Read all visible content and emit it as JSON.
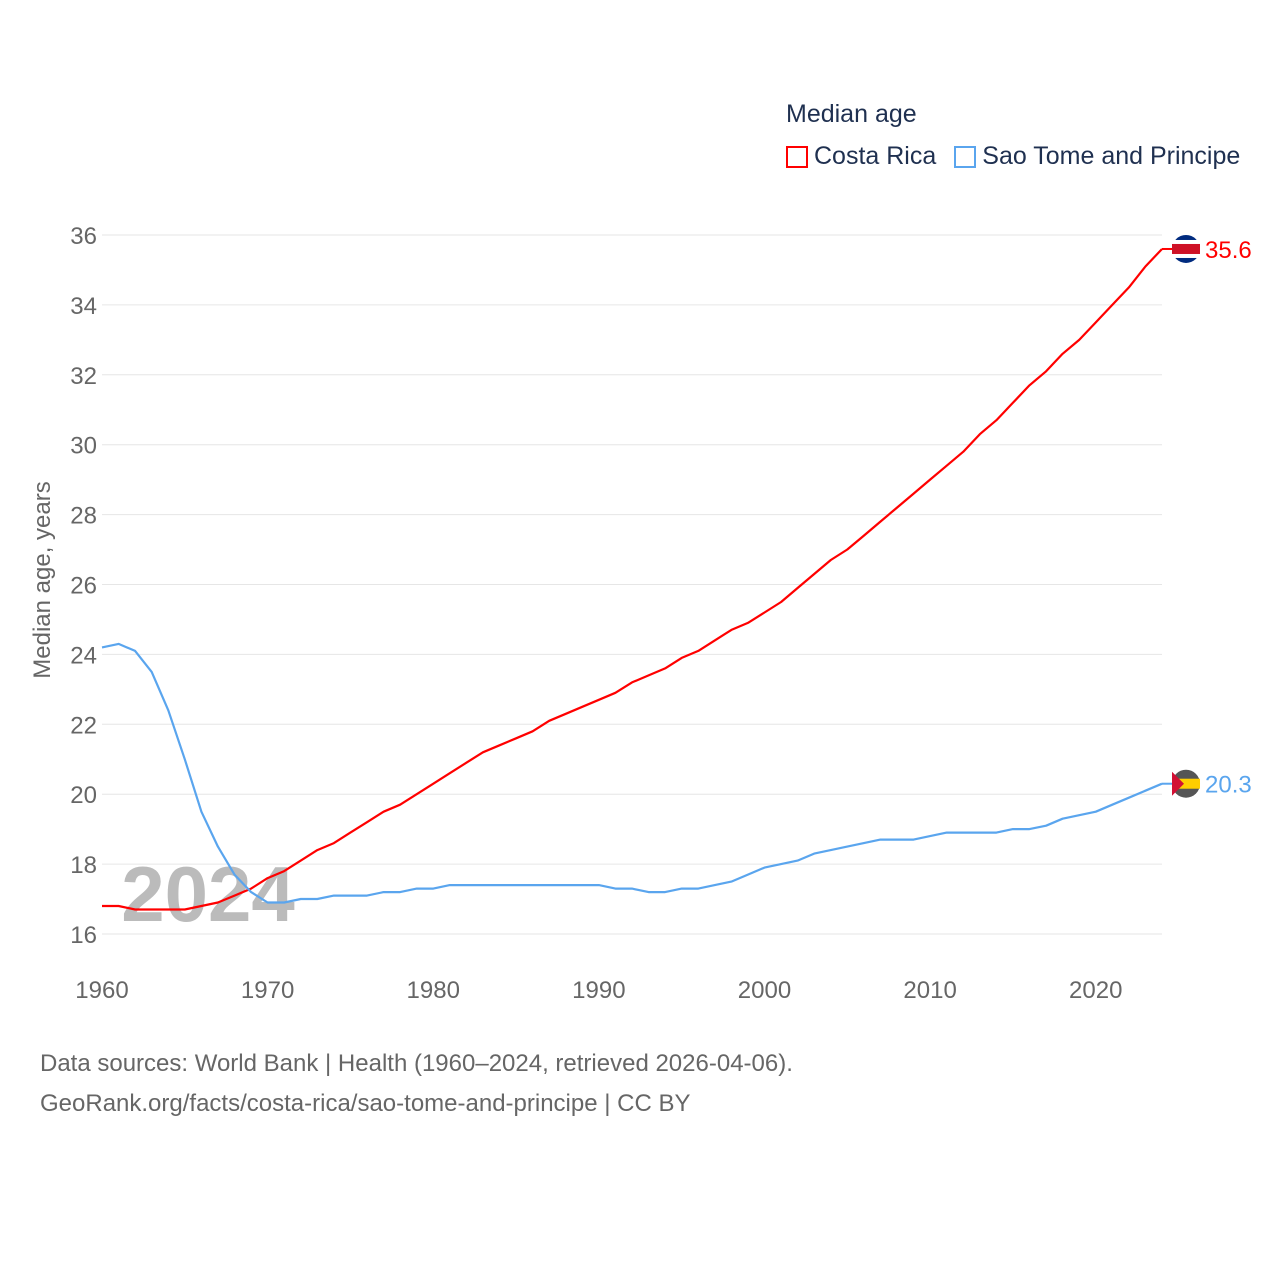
{
  "chart_data": {
    "type": "line",
    "legend_title": "Median age",
    "ylabel": "Median age, years",
    "xlabel": "",
    "xlim": [
      1960,
      2024
    ],
    "ylim": [
      16,
      36
    ],
    "x_ticks": [
      "1960",
      "1970",
      "1980",
      "1990",
      "2000",
      "2010",
      "2020"
    ],
    "y_ticks": [
      "16",
      "18",
      "20",
      "22",
      "24",
      "26",
      "28",
      "30",
      "32",
      "34",
      "36"
    ],
    "grid": true,
    "legend_position": "top-right",
    "year_watermark": "2024",
    "x": [
      1960,
      1961,
      1962,
      1963,
      1964,
      1965,
      1966,
      1967,
      1968,
      1969,
      1970,
      1971,
      1972,
      1973,
      1974,
      1975,
      1976,
      1977,
      1978,
      1979,
      1980,
      1981,
      1982,
      1983,
      1984,
      1985,
      1986,
      1987,
      1988,
      1989,
      1990,
      1991,
      1992,
      1993,
      1994,
      1995,
      1996,
      1997,
      1998,
      1999,
      2000,
      2001,
      2002,
      2003,
      2004,
      2005,
      2006,
      2007,
      2008,
      2009,
      2010,
      2011,
      2012,
      2013,
      2014,
      2015,
      2016,
      2017,
      2018,
      2019,
      2020,
      2021,
      2022,
      2023,
      2024
    ],
    "series": [
      {
        "name": "Costa Rica",
        "color": "#ff0000",
        "end_label": "35.6",
        "values": [
          16.8,
          16.8,
          16.7,
          16.7,
          16.7,
          16.7,
          16.8,
          16.9,
          17.1,
          17.3,
          17.6,
          17.8,
          18.1,
          18.4,
          18.6,
          18.9,
          19.2,
          19.5,
          19.7,
          20.0,
          20.3,
          20.6,
          20.9,
          21.2,
          21.4,
          21.6,
          21.8,
          22.1,
          22.3,
          22.5,
          22.7,
          22.9,
          23.2,
          23.4,
          23.6,
          23.9,
          24.1,
          24.4,
          24.7,
          24.9,
          25.2,
          25.5,
          25.9,
          26.3,
          26.7,
          27.0,
          27.4,
          27.8,
          28.2,
          28.6,
          29.0,
          29.4,
          29.8,
          30.3,
          30.7,
          31.2,
          31.7,
          32.1,
          32.6,
          33.0,
          33.5,
          34.0,
          34.5,
          35.1,
          35.6
        ]
      },
      {
        "name": "Sao Tome and Principe",
        "color": "#5aa5ee",
        "end_label": "20.3",
        "values": [
          24.2,
          24.3,
          24.1,
          23.5,
          22.4,
          21.0,
          19.5,
          18.5,
          17.7,
          17.2,
          16.9,
          16.9,
          17.0,
          17.0,
          17.1,
          17.1,
          17.1,
          17.2,
          17.2,
          17.3,
          17.3,
          17.4,
          17.4,
          17.4,
          17.4,
          17.4,
          17.4,
          17.4,
          17.4,
          17.4,
          17.4,
          17.3,
          17.3,
          17.2,
          17.2,
          17.3,
          17.3,
          17.4,
          17.5,
          17.7,
          17.9,
          18.0,
          18.1,
          18.3,
          18.4,
          18.5,
          18.6,
          18.7,
          18.7,
          18.7,
          18.8,
          18.9,
          18.9,
          18.9,
          18.9,
          19.0,
          19.0,
          19.1,
          19.3,
          19.4,
          19.5,
          19.7,
          19.9,
          20.1,
          20.3
        ]
      }
    ]
  },
  "footer": {
    "line1": "Data sources: World Bank | Health (1960–2024, retrieved 2026-04-06).",
    "line2": "GeoRank.org/facts/costa-rica/sao-tome-and-principe | CC BY"
  }
}
